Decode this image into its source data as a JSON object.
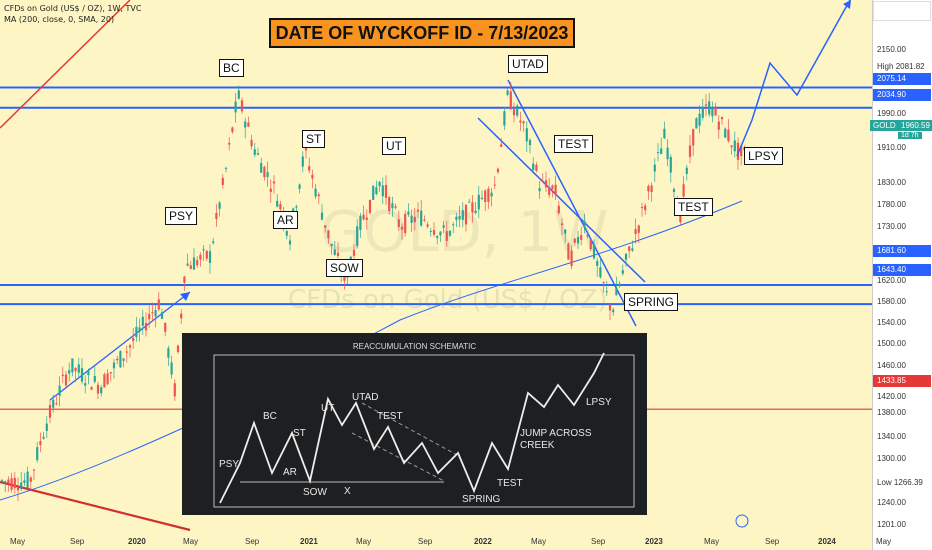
{
  "header": {
    "line1": "CFDs on Gold (US$ / OZ), 1W, TVC",
    "line2": "MA (200, close, 0, SMA, 20)"
  },
  "banner": "DATE OF WYCKOFF ID - 7/13/2023",
  "watermark": {
    "big": "GOLD, 1W",
    "small": "CFDs on Gold (US$ / OZ)"
  },
  "labels": {
    "psy": "PSY",
    "bc": "BC",
    "ar": "AR",
    "st": "ST",
    "sow": "SOW",
    "ut": "UT",
    "utad": "UTAD",
    "test1": "TEST",
    "spring": "SPRING",
    "test2": "TEST",
    "lpsy": "LPSY"
  },
  "price_axis": {
    "ticks": [
      "2150.00",
      "1990.00",
      "1910.00",
      "1830.00",
      "1780.00",
      "1730.00",
      "1620.00",
      "1580.00",
      "1540.00",
      "1500.00",
      "1460.00",
      "1420.00",
      "1380.00",
      "1340.00",
      "1300.00",
      "1266.39",
      "1240.00",
      "1201.00"
    ],
    "high_label": "High",
    "high_value": "2081.82",
    "tag_2075": "2075.14",
    "tag_2034": "2034.90",
    "symbol": "GOLD",
    "last_price": "1960.59",
    "countdown": "1d 7h",
    "tag_1681": "1681.60",
    "tag_1643": "1643.40",
    "tag_1433": "1433.85",
    "low_label": "Low"
  },
  "time_axis": [
    "May",
    "Sep",
    "2020",
    "May",
    "Sep",
    "2021",
    "May",
    "Sep",
    "2022",
    "May",
    "Sep",
    "2023",
    "May",
    "Sep",
    "2024",
    "May"
  ],
  "schematic": {
    "title": "REACCUMULATION SCHEMATIC",
    "labels": {
      "psy": "PSY",
      "bc": "BC",
      "ar": "AR",
      "st": "ST",
      "sow": "SOW",
      "x": "X",
      "ut": "UT",
      "utad": "UTAD",
      "test1": "TEST",
      "spring": "SPRING",
      "test2": "TEST",
      "jump": "JUMP ACROSS",
      "creek": "CREEK",
      "lpsy": "LPSY"
    }
  },
  "chart_data": {
    "type": "candlestick",
    "symbol": "GOLD",
    "timeframe": "1W",
    "x_range": [
      "May 2019",
      "May 2024"
    ],
    "y_range": [
      1201.0,
      2150.0
    ],
    "last_price": 1960.59,
    "high": 2081.82,
    "low": 1266.39,
    "horizontal_levels": [
      2075.14,
      2034.9,
      1681.6,
      1643.4,
      1433.85
    ],
    "events": [
      {
        "label": "PSY",
        "date": "2020-03",
        "price": 1700
      },
      {
        "label": "BC",
        "date": "2020-08",
        "price": 2075
      },
      {
        "label": "AR",
        "date": "2020-11",
        "price": 1765
      },
      {
        "label": "ST",
        "date": "2021-01",
        "price": 1955
      },
      {
        "label": "SOW",
        "date": "2021-03",
        "price": 1680
      },
      {
        "label": "UT",
        "date": "2021-06",
        "price": 1915
      },
      {
        "label": "UTAD",
        "date": "2022-03",
        "price": 2070
      },
      {
        "label": "TEST",
        "date": "2022-04",
        "price": 1998
      },
      {
        "label": "SPRING",
        "date": "2022-09",
        "price": 1620
      },
      {
        "label": "TEST",
        "date": "2023-03",
        "price": 1810
      },
      {
        "label": "LPSY",
        "date": "2023-06",
        "price": 1910
      }
    ],
    "ma200": {
      "name": "MA (200, close, 0, SMA, 20)"
    }
  }
}
